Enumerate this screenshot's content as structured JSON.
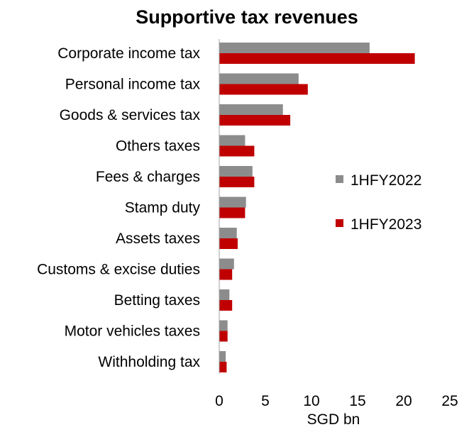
{
  "chart_data": {
    "type": "bar",
    "orientation": "horizontal",
    "title": "Supportive tax revenues",
    "xlabel": "SGD bn",
    "ylabel": "",
    "xlim": [
      0,
      25
    ],
    "xticks": [
      0,
      5,
      10,
      15,
      20,
      25
    ],
    "grid": false,
    "legend_position": "right",
    "categories": [
      "Corporate income tax",
      "Personal income tax",
      "Goods & services tax",
      "Others taxes",
      "Fees & charges",
      "Stamp duty",
      "Assets taxes",
      "Customs & excise duties",
      "Betting taxes",
      "Motor vehicles taxes",
      "Withholding tax"
    ],
    "series": [
      {
        "name": "1HFY2022",
        "color": "#8c8c8c",
        "values": [
          16.3,
          8.6,
          6.9,
          2.8,
          3.6,
          2.9,
          1.9,
          1.6,
          1.1,
          0.9,
          0.7
        ]
      },
      {
        "name": "1HFY2023",
        "color": "#c00000",
        "values": [
          21.2,
          9.6,
          7.7,
          3.8,
          3.8,
          2.8,
          2.0,
          1.4,
          1.4,
          0.9,
          0.8
        ]
      }
    ]
  }
}
